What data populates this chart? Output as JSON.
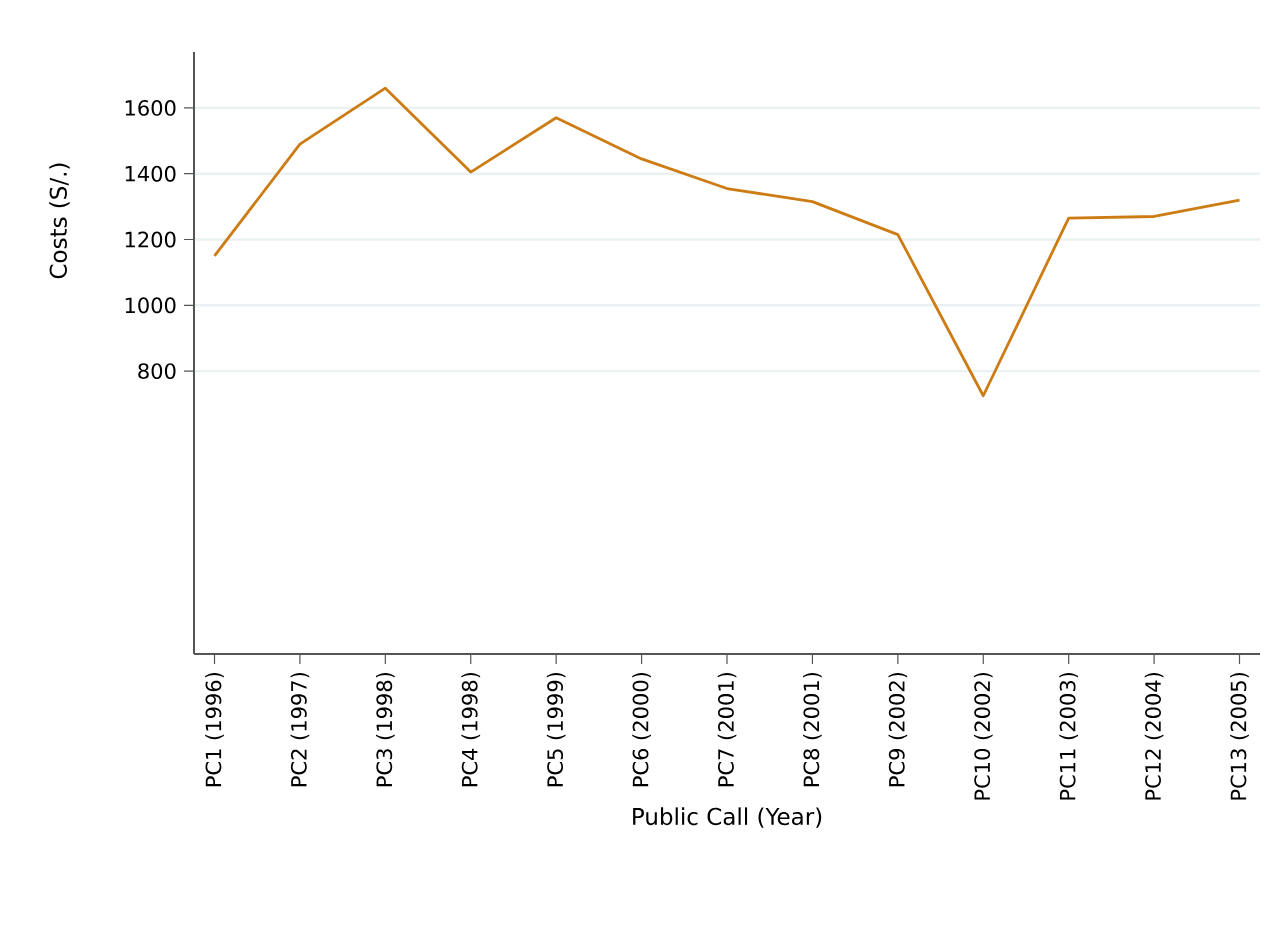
{
  "chart_data": {
    "type": "line",
    "xlabel": "Public Call (Year)",
    "ylabel": "Costs (S/.)",
    "categories": [
      "PC1 (1996)",
      "PC2 (1997)",
      "PC3 (1998)",
      "PC4 (1998)",
      "PC5 (1999)",
      "PC6 (2000)",
      "PC7 (2001)",
      "PC8 (2001)",
      "PC9 (2002)",
      "PC10 (2002)",
      "PC11 (2003)",
      "PC12 (2004)",
      "PC13 (2005)"
    ],
    "series": [
      {
        "color": "#cd7c14",
        "values": [
          1150,
          1490,
          1660,
          1405,
          1570,
          1445,
          1355,
          1315,
          1215,
          725,
          1265,
          1270,
          1320
        ]
      }
    ],
    "ylim": [
      -60,
      1770
    ],
    "yticks": [
      800,
      1000,
      1200,
      1400,
      1600
    ],
    "grid": "y",
    "legend": false,
    "marker": "none",
    "line_style": "solid"
  }
}
